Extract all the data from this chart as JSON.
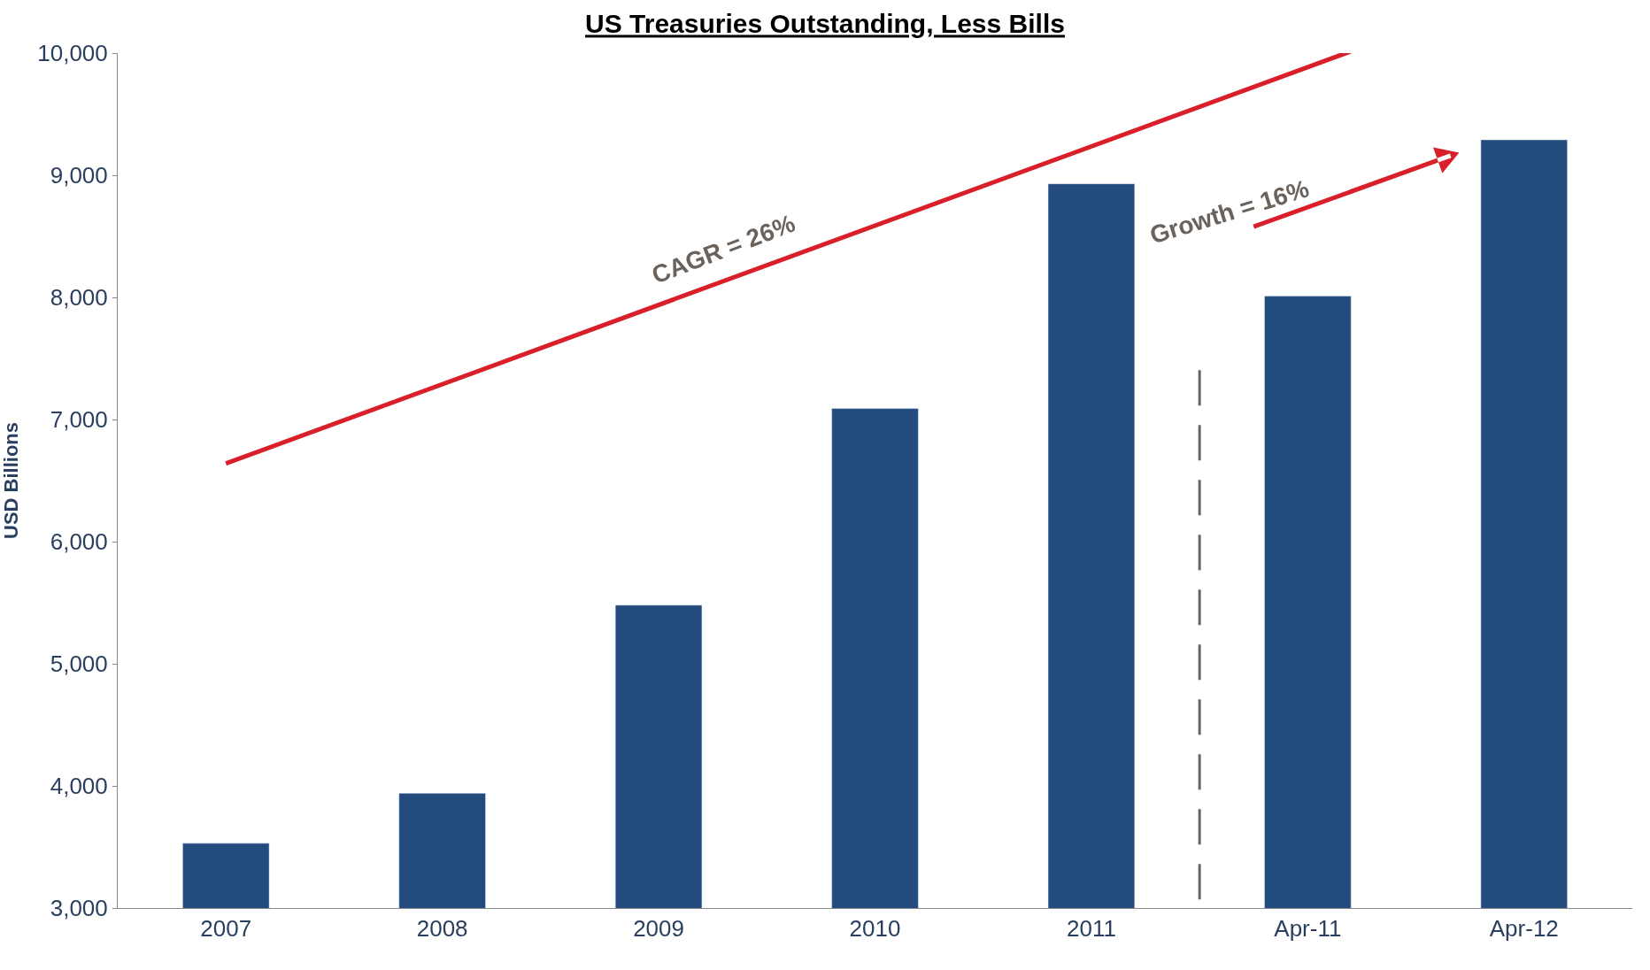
{
  "chart_data": {
    "type": "bar",
    "title": "US Treasuries Outstanding, Less Bills",
    "ylabel": "USD Billions",
    "categories": [
      "2007",
      "2008",
      "2009",
      "2010",
      "2011",
      "Apr-11",
      "Apr-12"
    ],
    "values": [
      3530,
      3940,
      5480,
      7090,
      8930,
      8010,
      9290
    ],
    "color": "#234b7e",
    "ylim": [
      3000,
      10000
    ],
    "yticks": [
      {
        "value": 3000,
        "label": "3,000"
      },
      {
        "value": 4000,
        "label": "4,000"
      },
      {
        "value": 5000,
        "label": "5,000"
      },
      {
        "value": 6000,
        "label": "6,000"
      },
      {
        "value": 7000,
        "label": "7,000"
      },
      {
        "value": 8000,
        "label": "8,000"
      },
      {
        "value": 9000,
        "label": "9,000"
      },
      {
        "value": 10000,
        "label": "10,000"
      }
    ],
    "annotations": [
      "CAGR = 26%",
      "Growth = 16%"
    ]
  }
}
